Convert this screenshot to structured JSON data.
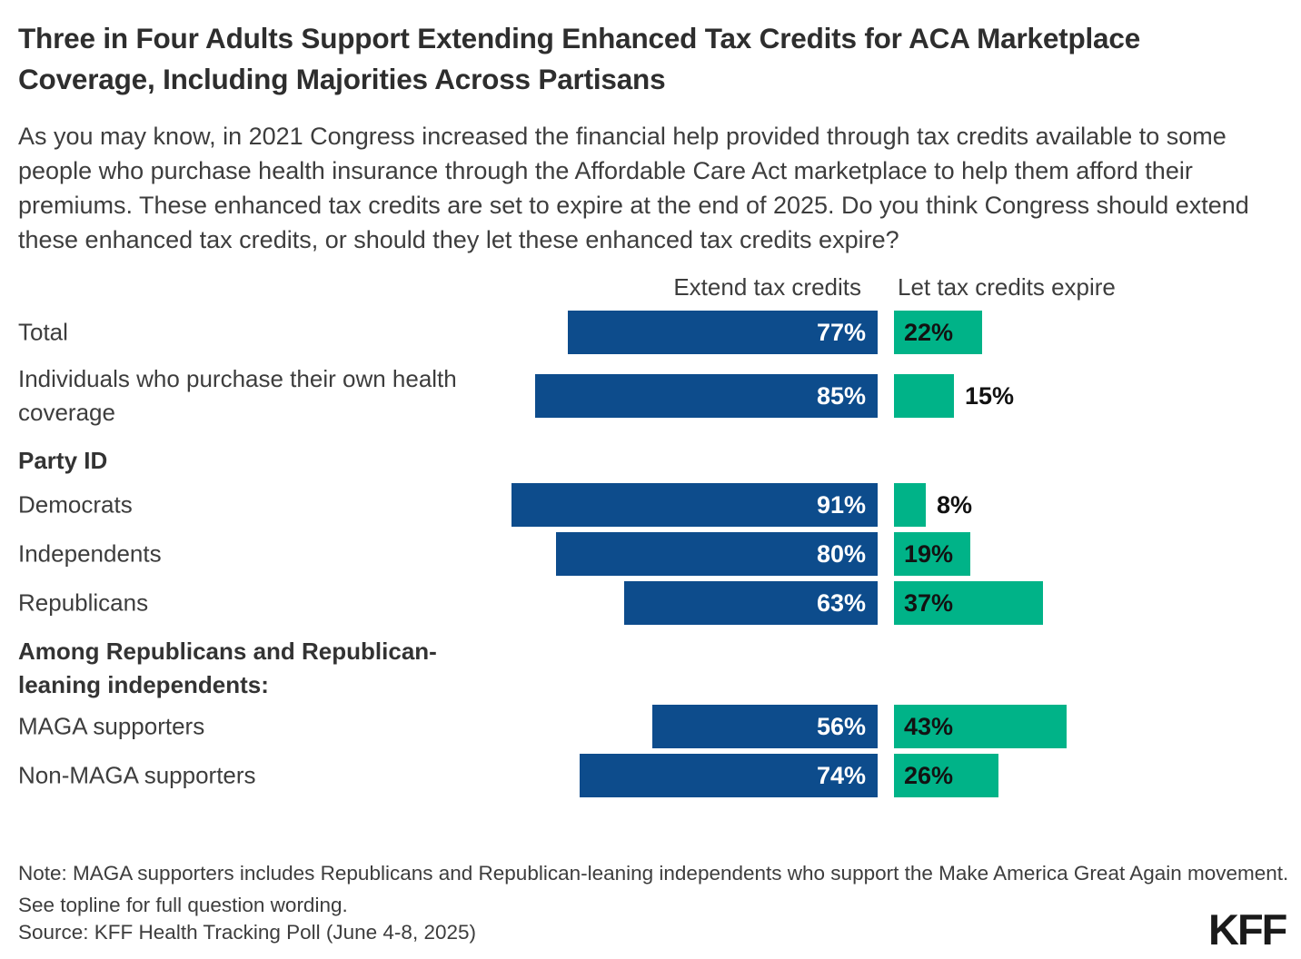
{
  "title": "Three in Four Adults Support Extending Enhanced Tax Credits for ACA Marketplace Coverage, Including Majorities Across Partisans",
  "subtitle": "As you may know, in 2021 Congress increased the financial help provided through tax credits available to some people who purchase health insurance through the Affordable Care Act marketplace to help them afford their premiums. These enhanced tax credits are set to expire at the end of 2025. Do you think Congress should extend these enhanced tax credits, or should they let these enhanced tax credits expire?",
  "chart_data": {
    "type": "bar",
    "orientation": "horizontal",
    "unit": "percent",
    "xlim": [
      0,
      100
    ],
    "series_labels": [
      "Extend tax credits",
      "Let tax credits expire"
    ],
    "series_colors": [
      "#0D4C8C",
      "#00B388"
    ],
    "rows": [
      {
        "kind": "bar",
        "label": "Total",
        "extend": 77,
        "expire": 22
      },
      {
        "kind": "bar",
        "label": "Individuals who purchase their own health coverage",
        "extend": 85,
        "expire": 15
      },
      {
        "kind": "heading",
        "label": "Party ID"
      },
      {
        "kind": "bar",
        "label": "Democrats",
        "extend": 91,
        "expire": 8
      },
      {
        "kind": "bar",
        "label": "Independents",
        "extend": 80,
        "expire": 19
      },
      {
        "kind": "bar",
        "label": "Republicans",
        "extend": 63,
        "expire": 37
      },
      {
        "kind": "heading",
        "label": "Among Republicans and Republican-leaning independents:"
      },
      {
        "kind": "bar",
        "label": "MAGA supporters",
        "extend": 56,
        "expire": 43
      },
      {
        "kind": "bar",
        "label": "Non-MAGA supporters",
        "extend": 74,
        "expire": 26
      }
    ]
  },
  "note": "Note: MAGA supporters includes Republicans and Republican-leaning independents who support the Make America Great Again movement. See topline for full question wording.",
  "source": "Source: KFF Health Tracking Poll (June 4-8, 2025)",
  "logo": "KFF"
}
